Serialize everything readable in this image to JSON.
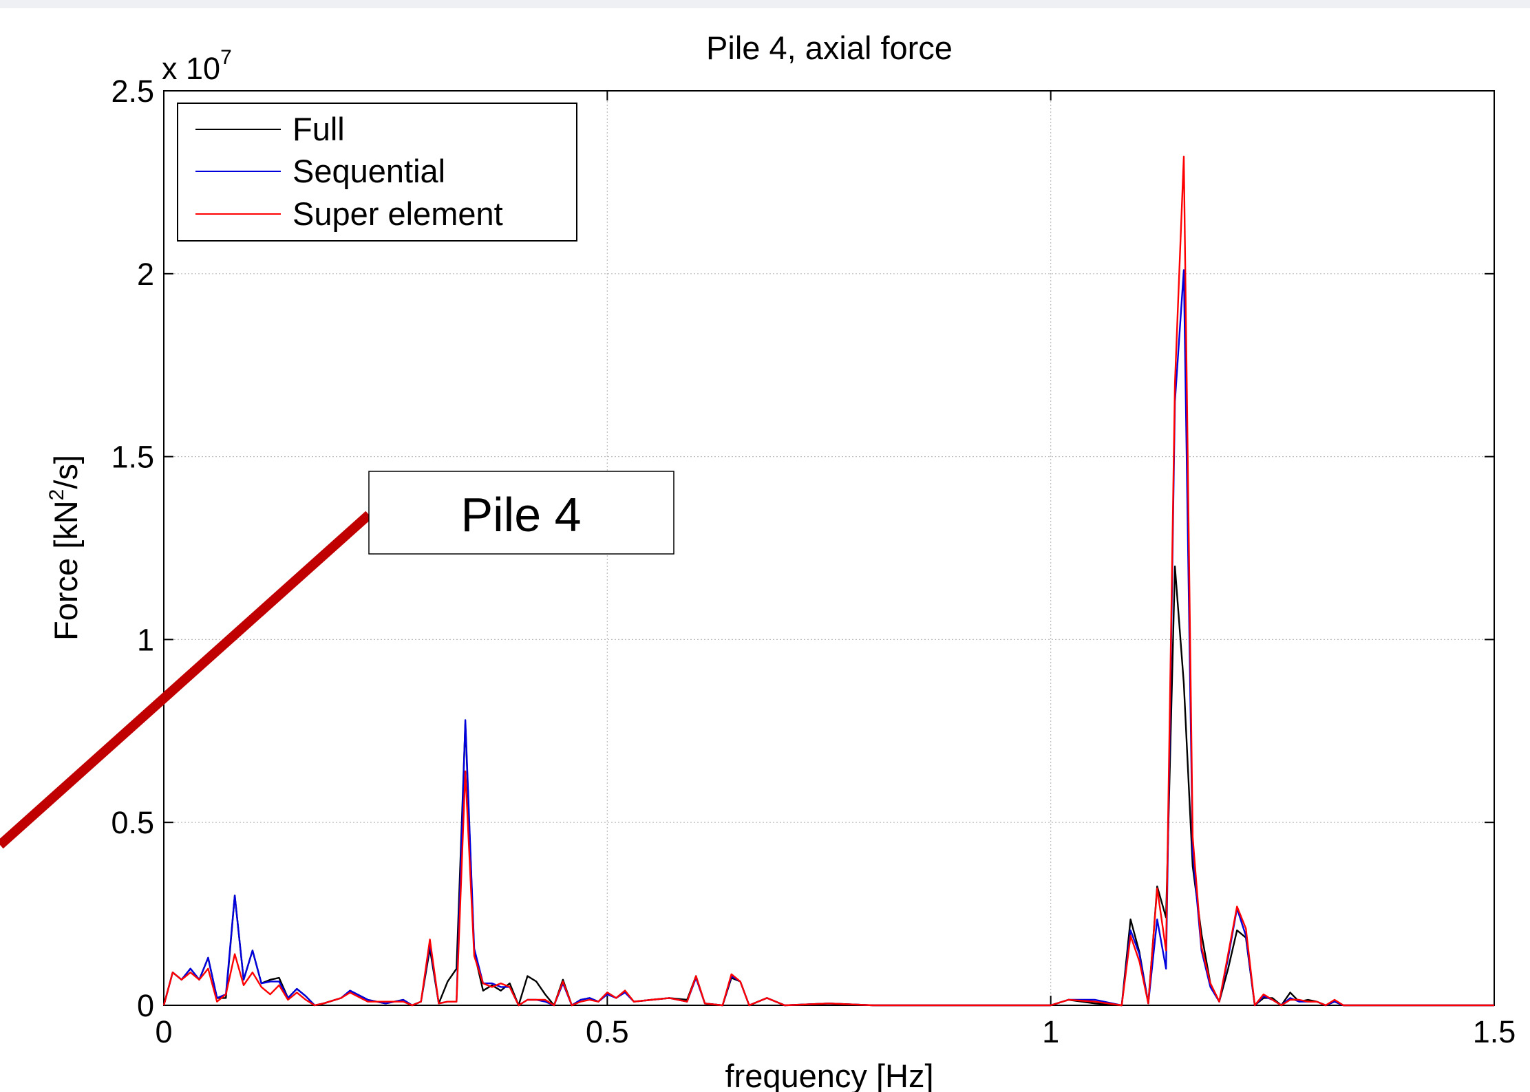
{
  "chart_data": {
    "type": "line",
    "title": "Pile 4, axial force",
    "xlabel": "frequency [Hz]",
    "ylabel_main": "Force [kN",
    "ylabel_sup": "2",
    "ylabel_tail": "/s]",
    "xlim": [
      0,
      1.5
    ],
    "ylim": [
      0,
      25000000
    ],
    "y_exponent_prefix": "x 10",
    "y_exponent_power": "7",
    "x_ticks": [
      0,
      0.5,
      1,
      1.5
    ],
    "x_tick_labels": [
      "0",
      "0.5",
      "1",
      "1.5"
    ],
    "y_ticks": [
      0,
      5000000,
      10000000,
      15000000,
      20000000,
      25000000
    ],
    "y_tick_labels": [
      "0",
      "0.5",
      "1",
      "1.5",
      "2",
      "2.5"
    ],
    "grid": true,
    "legend_position": "top-left",
    "series": [
      {
        "name": "Full",
        "color": "#000000",
        "x": [
          0,
          0.01,
          0.02,
          0.03,
          0.04,
          0.05,
          0.06,
          0.07,
          0.08,
          0.09,
          0.1,
          0.11,
          0.12,
          0.13,
          0.14,
          0.15,
          0.16,
          0.17,
          0.18,
          0.2,
          0.21,
          0.23,
          0.25,
          0.27,
          0.28,
          0.29,
          0.3,
          0.31,
          0.32,
          0.33,
          0.34,
          0.35,
          0.36,
          0.37,
          0.38,
          0.39,
          0.4,
          0.41,
          0.42,
          0.43,
          0.44,
          0.45,
          0.46,
          0.47,
          0.48,
          0.49,
          0.5,
          0.51,
          0.52,
          0.53,
          0.55,
          0.57,
          0.59,
          0.6,
          0.61,
          0.63,
          0.64,
          0.65,
          0.66,
          0.68,
          0.7,
          0.75,
          0.8,
          0.9,
          1.0,
          1.02,
          1.05,
          1.08,
          1.09,
          1.1,
          1.11,
          1.12,
          1.13,
          1.14,
          1.15,
          1.16,
          1.17,
          1.18,
          1.19,
          1.2,
          1.21,
          1.22,
          1.23,
          1.24,
          1.25,
          1.26,
          1.27,
          1.28,
          1.29,
          1.3,
          1.31,
          1.32,
          1.33,
          1.34,
          1.35,
          1.38,
          1.42,
          1.46,
          1.5
        ],
        "y": [
          0,
          900000,
          700000,
          1000000,
          700000,
          1300000,
          200000,
          200000,
          3000000,
          700000,
          1500000,
          600000,
          700000,
          750000,
          200000,
          450000,
          250000,
          0,
          50000,
          200000,
          400000,
          150000,
          50000,
          150000,
          0,
          100000,
          1550000,
          50000,
          650000,
          1000000,
          7700000,
          1450000,
          400000,
          550000,
          400000,
          600000,
          0,
          800000,
          650000,
          300000,
          0,
          700000,
          0,
          150000,
          200000,
          100000,
          350000,
          200000,
          400000,
          100000,
          150000,
          200000,
          150000,
          800000,
          50000,
          0,
          750000,
          650000,
          0,
          200000,
          0,
          50000,
          0,
          0,
          0,
          150000,
          50000,
          0,
          2350000,
          1450000,
          50000,
          3250000,
          2400000,
          12000000,
          8800000,
          3800000,
          1950000,
          600000,
          100000,
          1000000,
          2050000,
          1850000,
          0,
          200000,
          200000,
          0,
          350000,
          100000,
          150000,
          100000,
          0,
          100000,
          0,
          0,
          0,
          0,
          0,
          0,
          0
        ]
      },
      {
        "name": "Sequential",
        "color": "#0000dd",
        "x": [
          0,
          0.01,
          0.02,
          0.03,
          0.04,
          0.05,
          0.06,
          0.07,
          0.08,
          0.09,
          0.1,
          0.11,
          0.12,
          0.13,
          0.14,
          0.15,
          0.16,
          0.17,
          0.18,
          0.2,
          0.21,
          0.23,
          0.25,
          0.27,
          0.28,
          0.29,
          0.3,
          0.31,
          0.32,
          0.33,
          0.34,
          0.35,
          0.36,
          0.37,
          0.38,
          0.39,
          0.4,
          0.41,
          0.42,
          0.43,
          0.44,
          0.45,
          0.46,
          0.47,
          0.48,
          0.49,
          0.5,
          0.51,
          0.52,
          0.53,
          0.55,
          0.57,
          0.59,
          0.6,
          0.61,
          0.63,
          0.64,
          0.65,
          0.66,
          0.68,
          0.7,
          0.75,
          0.8,
          0.9,
          1.0,
          1.02,
          1.05,
          1.08,
          1.09,
          1.1,
          1.11,
          1.12,
          1.13,
          1.14,
          1.15,
          1.16,
          1.17,
          1.18,
          1.19,
          1.2,
          1.21,
          1.22,
          1.23,
          1.24,
          1.25,
          1.26,
          1.27,
          1.28,
          1.29,
          1.3,
          1.31,
          1.32,
          1.33,
          1.34,
          1.35,
          1.38,
          1.42,
          1.46,
          1.5
        ],
        "y": [
          0,
          900000,
          700000,
          1000000,
          700000,
          1300000,
          200000,
          300000,
          3000000,
          700000,
          1500000,
          600000,
          650000,
          650000,
          200000,
          450000,
          250000,
          0,
          50000,
          200000,
          400000,
          150000,
          50000,
          150000,
          0,
          100000,
          1700000,
          50000,
          100000,
          100000,
          7800000,
          1550000,
          600000,
          600000,
          500000,
          500000,
          0,
          150000,
          150000,
          100000,
          0,
          600000,
          0,
          150000,
          200000,
          100000,
          300000,
          200000,
          350000,
          100000,
          150000,
          200000,
          100000,
          750000,
          50000,
          0,
          800000,
          650000,
          0,
          200000,
          0,
          50000,
          0,
          0,
          0,
          150000,
          150000,
          0,
          2050000,
          1400000,
          50000,
          2350000,
          1000000,
          16500000,
          20100000,
          4200000,
          1500000,
          500000,
          100000,
          1300000,
          2650000,
          1900000,
          0,
          250000,
          150000,
          0,
          200000,
          100000,
          100000,
          100000,
          0,
          100000,
          0,
          0,
          0,
          0,
          0,
          0,
          0
        ]
      },
      {
        "name": "Super element",
        "color": "#ff0000",
        "x": [
          0,
          0.01,
          0.02,
          0.03,
          0.04,
          0.05,
          0.06,
          0.07,
          0.08,
          0.09,
          0.1,
          0.11,
          0.12,
          0.13,
          0.14,
          0.15,
          0.16,
          0.17,
          0.18,
          0.2,
          0.21,
          0.23,
          0.25,
          0.27,
          0.28,
          0.29,
          0.3,
          0.31,
          0.32,
          0.33,
          0.34,
          0.35,
          0.36,
          0.37,
          0.38,
          0.39,
          0.4,
          0.41,
          0.42,
          0.43,
          0.44,
          0.45,
          0.46,
          0.47,
          0.48,
          0.49,
          0.5,
          0.51,
          0.52,
          0.53,
          0.55,
          0.57,
          0.59,
          0.6,
          0.61,
          0.63,
          0.64,
          0.65,
          0.66,
          0.68,
          0.7,
          0.75,
          0.8,
          0.9,
          1.0,
          1.02,
          1.05,
          1.08,
          1.09,
          1.1,
          1.11,
          1.12,
          1.13,
          1.14,
          1.15,
          1.16,
          1.17,
          1.18,
          1.19,
          1.2,
          1.21,
          1.22,
          1.23,
          1.24,
          1.25,
          1.26,
          1.27,
          1.28,
          1.29,
          1.3,
          1.31,
          1.32,
          1.33,
          1.34,
          1.35,
          1.38,
          1.42,
          1.46,
          1.5
        ],
        "y": [
          0,
          900000,
          700000,
          900000,
          700000,
          1000000,
          100000,
          300000,
          1400000,
          550000,
          900000,
          500000,
          300000,
          550000,
          150000,
          350000,
          150000,
          0,
          50000,
          200000,
          350000,
          100000,
          100000,
          100000,
          0,
          100000,
          1800000,
          50000,
          100000,
          100000,
          6400000,
          1350000,
          600000,
          500000,
          600000,
          500000,
          0,
          150000,
          150000,
          150000,
          0,
          650000,
          0,
          100000,
          150000,
          100000,
          350000,
          200000,
          400000,
          100000,
          150000,
          200000,
          100000,
          800000,
          50000,
          0,
          850000,
          650000,
          0,
          200000,
          0,
          50000,
          0,
          0,
          0,
          150000,
          100000,
          0,
          1900000,
          1200000,
          50000,
          3200000,
          1500000,
          17000000,
          23200000,
          4600000,
          1600000,
          600000,
          100000,
          1400000,
          2700000,
          2100000,
          0,
          300000,
          150000,
          0,
          150000,
          150000,
          100000,
          100000,
          0,
          150000,
          0,
          0,
          0,
          0,
          0,
          0,
          0
        ]
      }
    ]
  },
  "annotation": {
    "label": "Pile 4",
    "pointer_color": "#c00000"
  }
}
